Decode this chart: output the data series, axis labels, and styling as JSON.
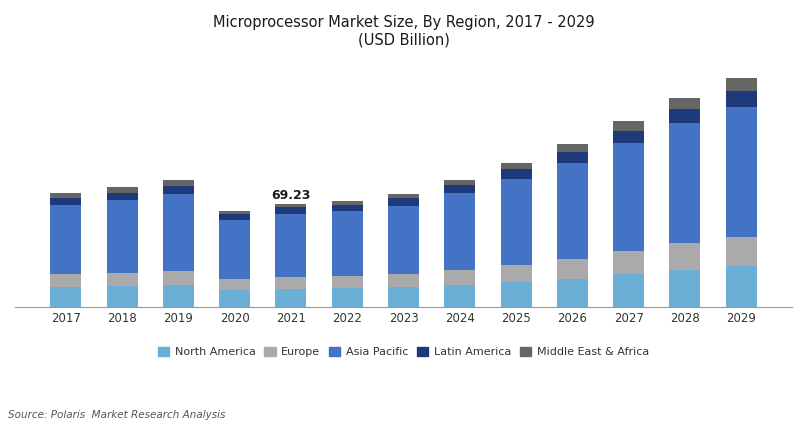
{
  "title_line1": "Microprocessor Market Size, By Region, 2017 - 2029",
  "title_line2": "(USD Billion)",
  "years": [
    2017,
    2018,
    2019,
    2020,
    2021,
    2022,
    2023,
    2024,
    2025,
    2026,
    2027,
    2028,
    2029
  ],
  "regions": [
    "North America",
    "Europe",
    "Asia Pacific",
    "Latin America",
    "Middle East & Africa"
  ],
  "colors": [
    "#6baed6",
    "#aaaaaa",
    "#4472c4",
    "#1f3a7a",
    "#666666"
  ],
  "data": {
    "North America": [
      13.5,
      14.0,
      14.5,
      11.5,
      12.0,
      12.5,
      13.5,
      15.0,
      17.0,
      19.0,
      22.0,
      25.0,
      27.5
    ],
    "Europe": [
      8.5,
      9.0,
      9.5,
      7.5,
      8.0,
      8.5,
      9.0,
      10.0,
      11.5,
      13.0,
      15.5,
      18.0,
      20.0
    ],
    "Asia Pacific": [
      47.0,
      49.0,
      52.0,
      40.0,
      43.0,
      43.5,
      46.0,
      52.0,
      58.0,
      65.0,
      73.0,
      81.0,
      88.0
    ],
    "Latin America": [
      4.5,
      5.0,
      5.5,
      3.5,
      4.5,
      4.5,
      5.0,
      5.5,
      6.5,
      7.5,
      8.5,
      9.5,
      10.5
    ],
    "Middle East & Africa": [
      3.5,
      4.0,
      4.5,
      2.5,
      1.73,
      2.5,
      3.0,
      3.5,
      4.5,
      5.5,
      6.5,
      7.5,
      8.5
    ]
  },
  "annotation_year": 2021,
  "annotation_text": "69.23",
  "source_text": "Source: Polaris  Market Research Analysis",
  "background_color": "#ffffff",
  "bar_width": 0.55,
  "ylim": [
    0,
    170
  ]
}
